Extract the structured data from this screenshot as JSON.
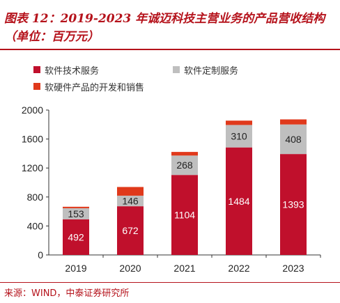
{
  "header": {
    "title": "图表 12：2019-2023 年诚迈科技主营业务的产品营收结构（单位：百万元）"
  },
  "source": {
    "text": "来源：WIND，中泰证券研究所"
  },
  "colors": {
    "title": "#b5121b",
    "series_1": "#c0102c",
    "series_2": "#bfbfbf",
    "series_3": "#e0391b"
  },
  "chart_data": {
    "type": "bar",
    "stacked": true,
    "categories": [
      "2019",
      "2020",
      "2021",
      "2022",
      "2023"
    ],
    "series": [
      {
        "name": "软件技术服务",
        "values": [
          492,
          672,
          1104,
          1484,
          1393
        ]
      },
      {
        "name": "软件定制服务",
        "values": [
          153,
          146,
          268,
          310,
          408
        ]
      },
      {
        "name": "软硬件产品的开发和销售",
        "values": [
          20,
          120,
          50,
          60,
          70
        ]
      }
    ],
    "data_labels": [
      [
        "492",
        "672",
        "1104",
        "1484",
        "1393"
      ],
      [
        "153",
        "146",
        "268",
        "310",
        "408"
      ]
    ],
    "ylim": [
      0,
      2000
    ],
    "yticks": [
      "0",
      "400",
      "800",
      "1200",
      "1600",
      "2000"
    ],
    "grid": false,
    "legend_position": "top-left"
  }
}
